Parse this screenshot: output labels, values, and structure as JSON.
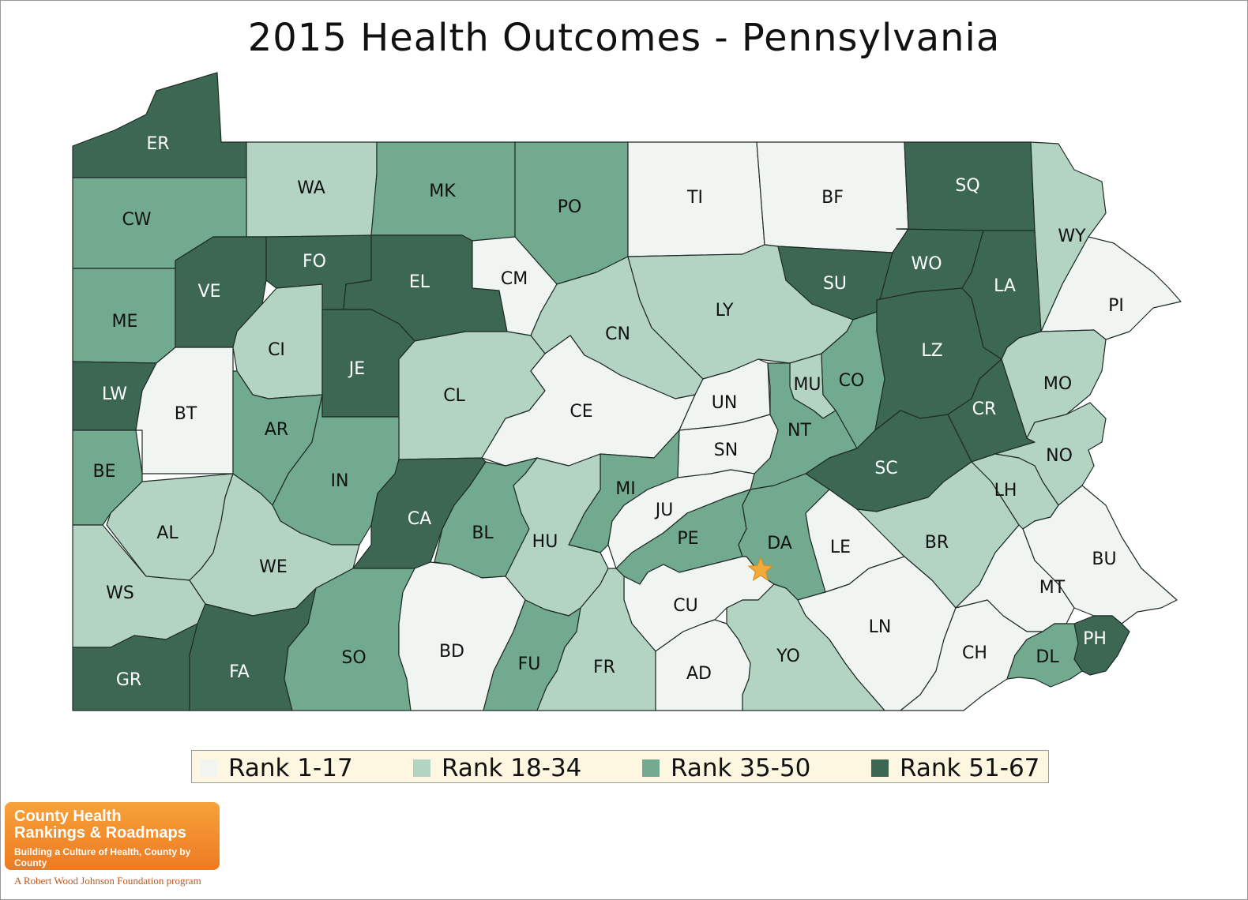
{
  "title": "2015 Health Outcomes - Pennsylvania",
  "legend": [
    {
      "label": "Rank 1-17",
      "color": "#f1f5f2"
    },
    {
      "label": "Rank 18-34",
      "color": "#b3d3c3"
    },
    {
      "label": "Rank 35-50",
      "color": "#71aa8f"
    },
    {
      "label": "Rank 51-67",
      "color": "#3c6753"
    }
  ],
  "counties": [
    {
      "code": "ER",
      "tier": 4
    },
    {
      "code": "WA",
      "tier": 2
    },
    {
      "code": "MK",
      "tier": 3
    },
    {
      "code": "PO",
      "tier": 3
    },
    {
      "code": "TI",
      "tier": 1
    },
    {
      "code": "BF",
      "tier": 1
    },
    {
      "code": "SQ",
      "tier": 4
    },
    {
      "code": "WY",
      "tier": 2
    },
    {
      "code": "CW",
      "tier": 3
    },
    {
      "code": "ME",
      "tier": 3
    },
    {
      "code": "VE",
      "tier": 4
    },
    {
      "code": "FO",
      "tier": 4
    },
    {
      "code": "EL",
      "tier": 4
    },
    {
      "code": "CM",
      "tier": 1
    },
    {
      "code": "CN",
      "tier": 2
    },
    {
      "code": "LY",
      "tier": 2
    },
    {
      "code": "SU",
      "tier": 4
    },
    {
      "code": "WO",
      "tier": 4
    },
    {
      "code": "LA",
      "tier": 4
    },
    {
      "code": "PI",
      "tier": 1
    },
    {
      "code": "LW",
      "tier": 4
    },
    {
      "code": "BT",
      "tier": 1
    },
    {
      "code": "CI",
      "tier": 2
    },
    {
      "code": "JE",
      "tier": 4
    },
    {
      "code": "CL",
      "tier": 2
    },
    {
      "code": "CE",
      "tier": 1
    },
    {
      "code": "UN",
      "tier": 1
    },
    {
      "code": "MU",
      "tier": 2
    },
    {
      "code": "CO",
      "tier": 3
    },
    {
      "code": "LZ",
      "tier": 4
    },
    {
      "code": "MO",
      "tier": 2
    },
    {
      "code": "BE",
      "tier": 3
    },
    {
      "code": "AR",
      "tier": 3
    },
    {
      "code": "IN",
      "tier": 3
    },
    {
      "code": "SN",
      "tier": 1
    },
    {
      "code": "NT",
      "tier": 3
    },
    {
      "code": "CR",
      "tier": 4
    },
    {
      "code": "SC",
      "tier": 4
    },
    {
      "code": "NO",
      "tier": 2
    },
    {
      "code": "AL",
      "tier": 2
    },
    {
      "code": "CA",
      "tier": 4
    },
    {
      "code": "BL",
      "tier": 3
    },
    {
      "code": "MI",
      "tier": 3
    },
    {
      "code": "JU",
      "tier": 1
    },
    {
      "code": "HU",
      "tier": 2
    },
    {
      "code": "PE",
      "tier": 3
    },
    {
      "code": "DA",
      "tier": 3
    },
    {
      "code": "LE",
      "tier": 1
    },
    {
      "code": "BR",
      "tier": 2
    },
    {
      "code": "LH",
      "tier": 2
    },
    {
      "code": "BU",
      "tier": 1
    },
    {
      "code": "WS",
      "tier": 2
    },
    {
      "code": "WE",
      "tier": 2
    },
    {
      "code": "MT",
      "tier": 1
    },
    {
      "code": "CU",
      "tier": 1
    },
    {
      "code": "LN",
      "tier": 1
    },
    {
      "code": "PH",
      "tier": 4
    },
    {
      "code": "GR",
      "tier": 4
    },
    {
      "code": "FA",
      "tier": 4
    },
    {
      "code": "SO",
      "tier": 3
    },
    {
      "code": "BD",
      "tier": 1
    },
    {
      "code": "FU",
      "tier": 3
    },
    {
      "code": "FR",
      "tier": 2
    },
    {
      "code": "AD",
      "tier": 1
    },
    {
      "code": "YO",
      "tier": 2
    },
    {
      "code": "CH",
      "tier": 1
    },
    {
      "code": "DL",
      "tier": 3
    }
  ],
  "capital_marker": "star",
  "marker_color": "#f4a93b",
  "logo": {
    "line1": "County Health",
    "line2": "Rankings & Roadmaps",
    "tagline": "Building a Culture of Health, County by County",
    "foundation": "A Robert Wood Johnson Foundation program"
  }
}
